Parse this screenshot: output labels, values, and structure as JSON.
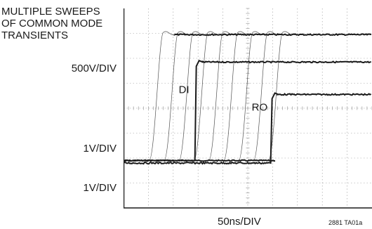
{
  "chart_data": {
    "type": "line",
    "title_lines": [
      "MULTIPLE SWEEPS",
      "OF COMMON MODE",
      "TRANSIENTS"
    ],
    "xlabel": "50ns/DIV",
    "figure_id": "2881 TA01a",
    "grid": true,
    "x_divisions": 10,
    "y_divisions": 8,
    "channels": [
      {
        "scale": "500V/DIV",
        "description": "common mode transient sweeps",
        "sweep_rise_x_div": [
          1.2,
          1.8,
          2.4,
          3.0,
          3.6,
          4.2,
          4.8,
          5.4,
          6.0
        ],
        "baseline_div": 1.9,
        "high_div": 6.95
      },
      {
        "name": "DI",
        "scale": "1V/DIV",
        "rise_x_div": 2.9,
        "baseline_div": 1.9,
        "high_div": 5.85
      },
      {
        "name": "RO",
        "scale": "1V/DIV",
        "rise_x_div": 5.95,
        "baseline_div": 1.8,
        "high_div": 4.55
      }
    ],
    "colors": {
      "trace": "#1a1a1a",
      "grid": "#9a9a9a",
      "axis": "#1a1a1a"
    }
  }
}
